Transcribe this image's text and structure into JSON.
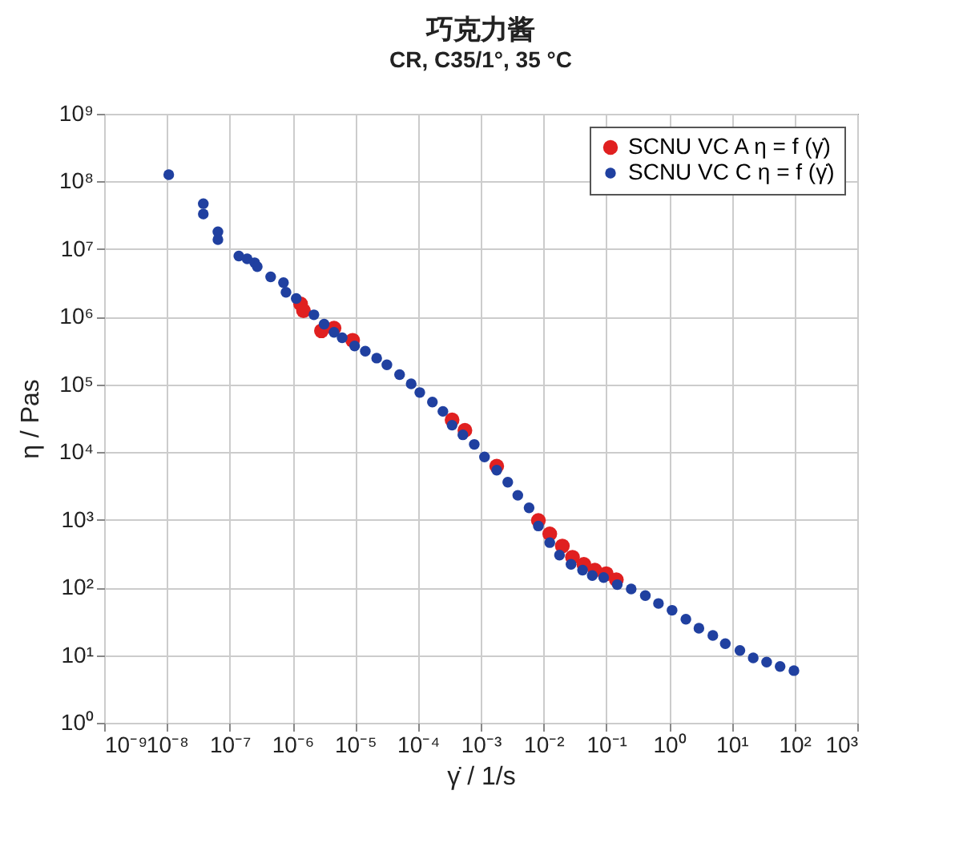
{
  "chart_data": {
    "type": "scatter",
    "title": "巧克力酱",
    "subtitle": "CR, C35/1°, 35 °C",
    "xlabel": "γ̇ / 1/s",
    "ylabel": "η / Pas",
    "log": "xy",
    "grid": true,
    "legend": "top right",
    "marker": "circle",
    "xlim": [
      1e-09,
      1000
    ],
    "ylim": [
      1,
      1000000000.0
    ],
    "xticks": [
      {
        "value": 1e-09,
        "label": "10⁻⁹"
      },
      {
        "value": 1e-08,
        "label": "10⁻⁸"
      },
      {
        "value": 1e-07,
        "label": "10⁻⁷"
      },
      {
        "value": 1e-06,
        "label": "10⁻⁶"
      },
      {
        "value": 1e-05,
        "label": "10⁻⁵"
      },
      {
        "value": 0.0001,
        "label": "10⁻⁴"
      },
      {
        "value": 0.001,
        "label": "10⁻³"
      },
      {
        "value": 0.01,
        "label": "10⁻²"
      },
      {
        "value": 0.1,
        "label": "10⁻¹"
      },
      {
        "value": 1,
        "label": "10⁰"
      },
      {
        "value": 10,
        "label": "10¹"
      },
      {
        "value": 100,
        "label": "10²"
      },
      {
        "value": 1000,
        "label": "10³"
      }
    ],
    "yticks": [
      {
        "value": 1,
        "label": "10⁰"
      },
      {
        "value": 10,
        "label": "10¹"
      },
      {
        "value": 100,
        "label": "10²"
      },
      {
        "value": 1000,
        "label": "10³"
      },
      {
        "value": 10000,
        "label": "10⁴"
      },
      {
        "value": 100000,
        "label": "10⁵"
      },
      {
        "value": 1000000.0,
        "label": "10⁶"
      },
      {
        "value": 10000000.0,
        "label": "10⁷"
      },
      {
        "value": 100000000.0,
        "label": "10⁸"
      },
      {
        "value": 1000000000.0,
        "label": "10⁹"
      }
    ],
    "series": [
      {
        "name": "SCNU VC A η = f (γ̇)",
        "color": "#e02020",
        "x": [
          1.35e-06,
          1.5e-06,
          2.9e-06,
          4.6e-06,
          9.1e-06,
          0.00035,
          0.00056,
          0.0018,
          0.0083,
          0.0126,
          0.02,
          0.029,
          0.044,
          0.066,
          0.1,
          0.145
        ],
        "values": [
          1550000.0,
          1230000.0,
          620000.0,
          680000.0,
          450000.0,
          30000.0,
          21000.0,
          6200.0,
          980,
          620,
          410,
          280,
          220,
          180,
          160,
          130
        ]
      },
      {
        "name": "SCNU VC C η = f (γ̇)",
        "color": "#2040a0",
        "x": [
          1.07e-08,
          3.8e-08,
          3.8e-08,
          6.5e-08,
          6.5e-08,
          1.4e-07,
          1.9e-07,
          2.5e-07,
          2.75e-07,
          4.5e-07,
          7.2e-07,
          7.9e-07,
          1.15e-06,
          2.2e-06,
          3.2e-06,
          4.6e-06,
          6.2e-06,
          9.8e-06,
          1.45e-05,
          2.2e-05,
          3.2e-05,
          5.1e-05,
          7.8e-05,
          0.000107,
          0.00017,
          0.00025,
          0.00035,
          0.00052,
          0.00079,
          0.00115,
          0.0018,
          0.0027,
          0.0039,
          0.0059,
          0.0083,
          0.0126,
          0.018,
          0.0275,
          0.042,
          0.06,
          0.091,
          0.15,
          0.25,
          0.42,
          0.68,
          1.12,
          1.86,
          3.0,
          5.0,
          7.9,
          13.5,
          22,
          36,
          59,
          98
        ],
        "values": [
          126000000.0,
          47000000.0,
          33000000.0,
          18000000.0,
          13800000.0,
          7900000.0,
          7200000.0,
          6300000.0,
          5500000.0,
          3900000.0,
          3200000.0,
          2300000.0,
          1860000.0,
          1070000.0,
          780000.0,
          590000.0,
          490000.0,
          370000.0,
          310000.0,
          245000.0,
          195000.0,
          140000.0,
          102000.0,
          76000.0,
          55000.0,
          40000.0,
          25000.0,
          18000.0,
          13000.0,
          8500.0,
          5400.0,
          3600.0,
          2300.0,
          1500.0,
          810,
          460,
          300,
          220,
          180,
          150,
          140,
          110,
          95,
          76,
          58,
          46,
          34,
          25,
          19.5,
          14.8,
          11.7,
          9.1,
          7.9,
          6.8,
          5.9
        ]
      }
    ]
  }
}
